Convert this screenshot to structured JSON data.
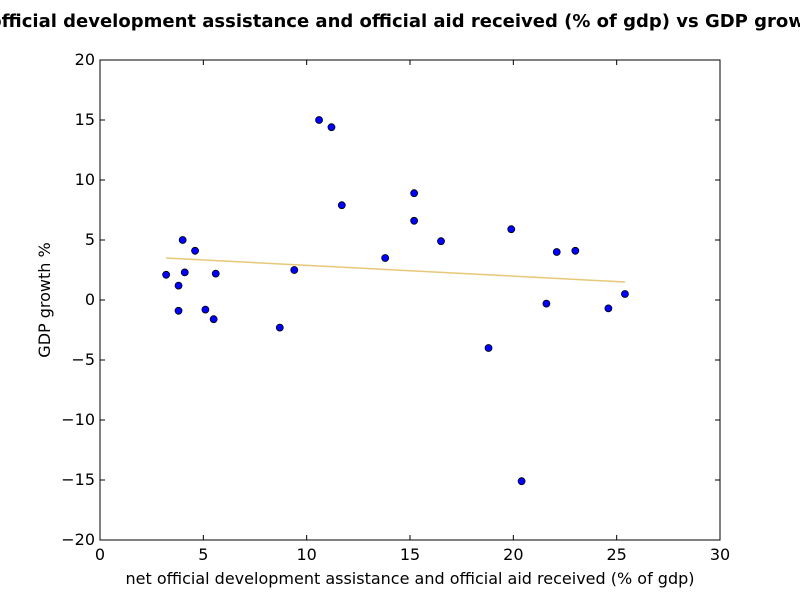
{
  "chart_data": {
    "type": "scatter",
    "title": "net official development assistance and official aid received (% of gdp) vs GDP growth %",
    "xlabel": "net official development assistance and official aid received (% of gdp)",
    "ylabel": "GDP growth %",
    "xlim": [
      0,
      30
    ],
    "ylim": [
      -20,
      20
    ],
    "x_ticks": [
      0,
      5,
      10,
      15,
      20,
      25,
      30
    ],
    "y_ticks": [
      -20,
      -15,
      -10,
      -5,
      0,
      5,
      10,
      15,
      20
    ],
    "x_tick_labels": [
      "0",
      "5",
      "10",
      "15",
      "20",
      "25",
      "30"
    ],
    "y_tick_labels": [
      "−20",
      "−15",
      "−10",
      "−5",
      "0",
      "5",
      "10",
      "15",
      "20"
    ],
    "grid": false,
    "colors": {
      "points": "#0000ff",
      "trend": "#e6c878",
      "axes": "#000000"
    },
    "points": [
      {
        "x": 3.2,
        "y": 2.1
      },
      {
        "x": 3.8,
        "y": 1.2
      },
      {
        "x": 3.8,
        "y": -0.9
      },
      {
        "x": 4.0,
        "y": 5.0
      },
      {
        "x": 4.1,
        "y": 2.3
      },
      {
        "x": 4.6,
        "y": 4.1
      },
      {
        "x": 5.1,
        "y": -0.8
      },
      {
        "x": 5.5,
        "y": -1.6
      },
      {
        "x": 5.6,
        "y": 2.2
      },
      {
        "x": 8.7,
        "y": -2.3
      },
      {
        "x": 9.4,
        "y": 2.5
      },
      {
        "x": 10.6,
        "y": 15.0
      },
      {
        "x": 11.2,
        "y": 14.4
      },
      {
        "x": 11.7,
        "y": 7.9
      },
      {
        "x": 13.8,
        "y": 3.5
      },
      {
        "x": 15.2,
        "y": 8.9
      },
      {
        "x": 15.2,
        "y": 6.6
      },
      {
        "x": 16.5,
        "y": 4.9
      },
      {
        "x": 18.8,
        "y": -4.0
      },
      {
        "x": 19.9,
        "y": 5.9
      },
      {
        "x": 20.4,
        "y": -15.1
      },
      {
        "x": 21.6,
        "y": -0.3
      },
      {
        "x": 22.1,
        "y": 4.0
      },
      {
        "x": 23.0,
        "y": 4.1
      },
      {
        "x": 24.6,
        "y": -0.7
      },
      {
        "x": 25.4,
        "y": 0.5
      }
    ],
    "trend_line": {
      "x": [
        3.2,
        25.4
      ],
      "y": [
        3.5,
        1.5
      ]
    }
  }
}
